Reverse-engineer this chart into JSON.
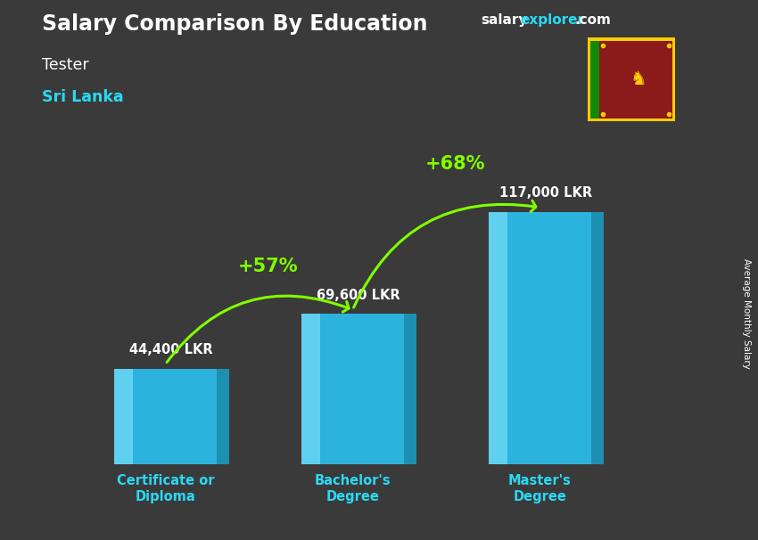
{
  "title": "Salary Comparison By Education",
  "subtitle": "Tester",
  "country": "Sri Lanka",
  "ylabel": "Average Monthly Salary",
  "website_part1": "salary",
  "website_part2": "explorer",
  "website_part3": ".com",
  "categories": [
    "Certificate or\nDiploma",
    "Bachelor's\nDegree",
    "Master's\nDegree"
  ],
  "values": [
    44400,
    69600,
    117000
  ],
  "value_labels": [
    "44,400 LKR",
    "69,600 LKR",
    "117,000 LKR"
  ],
  "pct_labels": [
    "+57%",
    "+68%"
  ],
  "bar_color_front": "#29c5f6",
  "bar_color_light": "#7de0fa",
  "bar_color_side": "#1a9abf",
  "bar_color_top": "#9eeafa",
  "bg_color": "#3a3a3a",
  "title_color": "#ffffff",
  "subtitle_color": "#ffffff",
  "country_color": "#29d9f5",
  "label_color": "#ffffff",
  "pct_color": "#7fff00",
  "arrow_color": "#7fff00",
  "website_color1": "#ffffff",
  "website_color2": "#29d9f5",
  "cat_label_color": "#29d9f5",
  "bar_positions": [
    1.2,
    3.2,
    5.2
  ],
  "bar_width": 1.1,
  "ylim": [
    0,
    145000
  ],
  "xlim": [
    0,
    6.8
  ]
}
